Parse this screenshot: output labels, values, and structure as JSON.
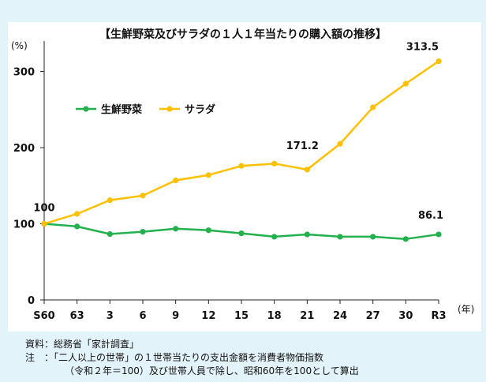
{
  "chart_data": {
    "type": "line",
    "title": "【生鮮野菜及びサラダの１人１年当たりの購入額の推移】",
    "ylabel": "(%)",
    "xunit": "(年)",
    "categories": [
      "S60",
      "63",
      "3",
      "6",
      "9",
      "12",
      "15",
      "18",
      "21",
      "24",
      "27",
      "30",
      "R3"
    ],
    "ylim": [
      0,
      340
    ],
    "yticks": [
      0,
      100,
      200,
      300
    ],
    "legend_position": "upper-left",
    "series": [
      {
        "name": "生鮮野菜",
        "color": "#22b14c",
        "values": [
          100,
          96.5,
          86.5,
          89.5,
          93.5,
          91.5,
          87.5,
          83,
          86,
          83,
          83,
          80,
          86.1
        ]
      },
      {
        "name": "サラダ",
        "color": "#ffc000",
        "values": [
          100,
          113,
          131,
          137,
          157,
          164,
          176,
          179,
          171.2,
          205,
          253,
          284,
          313.5
        ]
      }
    ],
    "annotations": [
      {
        "text": "100",
        "series": 1,
        "index": 0
      },
      {
        "text": "171.2",
        "series": 1,
        "index": 8
      },
      {
        "text": "313.5",
        "series": 1,
        "index": 12
      },
      {
        "text": "86.1",
        "series": 0,
        "index": 12
      }
    ]
  },
  "notes": {
    "source": "資料：総務省「家計調査」",
    "note_line1": "注　：「二人以上の世帯」の１世帯当たりの支出金額を消費者物価指数",
    "note_line2": "（令和２年＝100）及び世帯人員で除し、昭和60年を100として算出"
  }
}
